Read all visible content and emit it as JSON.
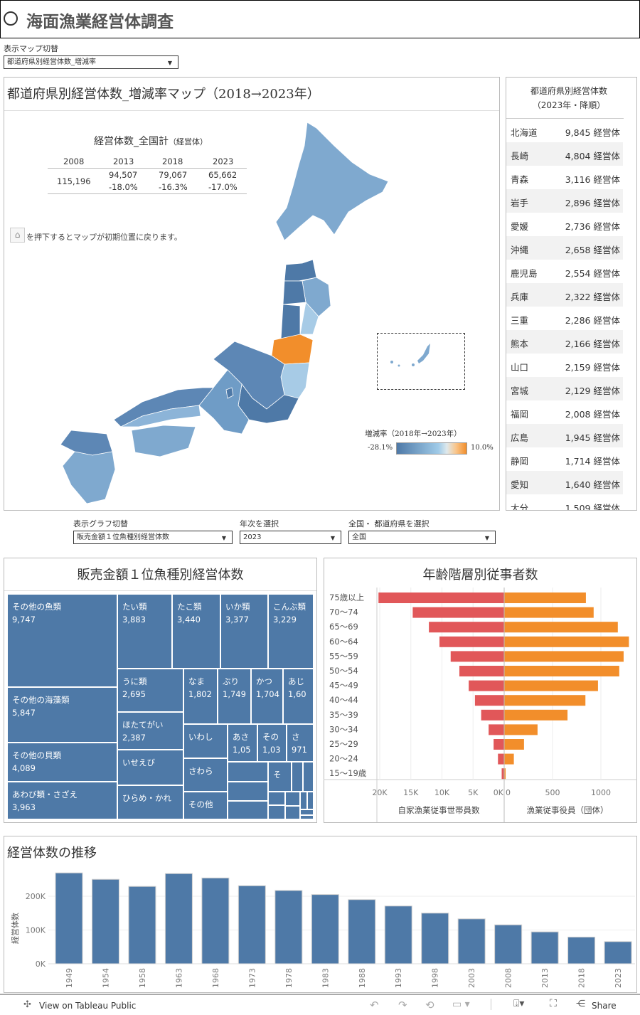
{
  "header": {
    "title": "海面漁業経営体調査",
    "icon": "circle-icon"
  },
  "map_switch": {
    "label": "表示マップ切替",
    "value": "都道府県別経営体数_増減率"
  },
  "map": {
    "title": "都道府県別経営体数_増減率マップ（2018→2023年）",
    "summary": {
      "title": "経営体数_全国計",
      "unit": "（経営体）",
      "years": [
        "2008",
        "2013",
        "2018",
        "2023"
      ],
      "values": [
        "115,196",
        "94,507",
        "79,067",
        "65,662"
      ],
      "changes": [
        "",
        "-18.0%",
        "-16.3%",
        "-17.0%"
      ]
    },
    "home_note": "を押下するとマップが初期位置に戻ります。",
    "legend": {
      "title": "増減率（2018年→2023年）",
      "min": "-28.1%",
      "max": "10.0%",
      "colors": [
        "#4e79a7",
        "#a0cbe8",
        "#f5d7b0",
        "#f28e2b"
      ]
    },
    "highlight_color": "#f28e2b"
  },
  "ranking": {
    "title": "都道府県別経営体数",
    "subtitle": "（2023年・降順）",
    "unit": "経営体",
    "rows": [
      {
        "name": "北海道",
        "value": "9,845"
      },
      {
        "name": "長崎",
        "value": "4,804"
      },
      {
        "name": "青森",
        "value": "3,116"
      },
      {
        "name": "岩手",
        "value": "2,896"
      },
      {
        "name": "愛媛",
        "value": "2,736"
      },
      {
        "name": "沖縄",
        "value": "2,658"
      },
      {
        "name": "鹿児島",
        "value": "2,554"
      },
      {
        "name": "兵庫",
        "value": "2,322"
      },
      {
        "name": "三重",
        "value": "2,286"
      },
      {
        "name": "熊本",
        "value": "2,166"
      },
      {
        "name": "山口",
        "value": "2,159"
      },
      {
        "name": "宮城",
        "value": "2,129"
      },
      {
        "name": "福岡",
        "value": "2,008"
      },
      {
        "name": "広島",
        "value": "1,945"
      },
      {
        "name": "静岡",
        "value": "1,714"
      },
      {
        "name": "愛知",
        "value": "1,640"
      },
      {
        "name": "大分",
        "value": "1,509"
      }
    ]
  },
  "filters": {
    "graph": {
      "label": "表示グラフ切替",
      "value": "販売金額１位魚種別経営体数"
    },
    "year": {
      "label": "年次を選択",
      "value": "2023"
    },
    "area": {
      "label": "全国・ 都道府県を選択",
      "value": "全国"
    }
  },
  "treemap": {
    "title": "販売金額１位魚種別経営体数",
    "color": "#4e79a7",
    "cells": [
      {
        "label": "その他の魚類",
        "value": "9,747"
      },
      {
        "label": "その他の海藻類",
        "value": "5,847"
      },
      {
        "label": "その他の貝類",
        "value": "4,089"
      },
      {
        "label": "あわび類・さざえ",
        "value": "3,963"
      },
      {
        "label": "たい類",
        "value": "3,883"
      },
      {
        "label": "たこ類",
        "value": "3,440"
      },
      {
        "label": "いか類",
        "value": "3,377"
      },
      {
        "label": "こんぶ類",
        "value": "3,229"
      },
      {
        "label": "うに類",
        "value": "2,695"
      },
      {
        "label": "ほたてがい",
        "value": "2,387"
      },
      {
        "label": "いせえび",
        "value": ""
      },
      {
        "label": "ひらめ・かれ",
        "value": ""
      },
      {
        "label": "なま",
        "value": "1,802"
      },
      {
        "label": "ぶり",
        "value": "1,749"
      },
      {
        "label": "かつ",
        "value": "1,704"
      },
      {
        "label": "あじ",
        "value": "1,60"
      },
      {
        "label": "いわし",
        "value": ""
      },
      {
        "label": "さわら",
        "value": ""
      },
      {
        "label": "その他",
        "value": ""
      },
      {
        "label": "あさ",
        "value": "1,05"
      },
      {
        "label": "その",
        "value": "1,03"
      },
      {
        "label": "さ",
        "value": "971"
      },
      {
        "label": "そ",
        "value": ""
      }
    ]
  },
  "pyramid": {
    "title": "年齢階層別従事者数",
    "categories": [
      "75歳以上",
      "70〜74",
      "65〜69",
      "60〜64",
      "55〜59",
      "50〜54",
      "45〜49",
      "40〜44",
      "35〜39",
      "30〜34",
      "25〜29",
      "20〜24",
      "15〜19歳"
    ],
    "left": {
      "name": "自家漁業従事世帯員数",
      "color": "#e15759",
      "values": [
        20200,
        14700,
        12100,
        10400,
        8600,
        7200,
        5700,
        4700,
        3700,
        2500,
        1700,
        1000,
        400
      ],
      "ticks": [
        "20K",
        "15K",
        "10K",
        "5K",
        "0K"
      ],
      "max": 20000
    },
    "right": {
      "name": "漁業従事役員（団体）",
      "color": "#f28e2b",
      "values": [
        845,
        925,
        1175,
        1290,
        1235,
        1190,
        970,
        840,
        655,
        345,
        205,
        100,
        15
      ],
      "ticks": [
        "0",
        "500",
        "1000"
      ]
    }
  },
  "chart_data": {
    "type": "bar",
    "title": "経営体数の推移",
    "ylabel": "経営体数",
    "xlabel": "",
    "categories": [
      "1949",
      "1954",
      "1958",
      "1963",
      "1968",
      "1973",
      "1978",
      "1983",
      "1988",
      "1993",
      "1998",
      "2003",
      "2008",
      "2013",
      "2018",
      "2023"
    ],
    "values": [
      269000,
      250000,
      229000,
      267000,
      254000,
      231000,
      217000,
      205000,
      190000,
      171000,
      150000,
      133000,
      115196,
      94507,
      79067,
      65662
    ],
    "yticks": [
      "0K",
      "100K",
      "200K"
    ],
    "ylim": [
      0,
      290000
    ],
    "grid": true,
    "color": "#4e79a7"
  },
  "footer": {
    "tableau_link": "View on Tableau Public",
    "share": "Share"
  }
}
